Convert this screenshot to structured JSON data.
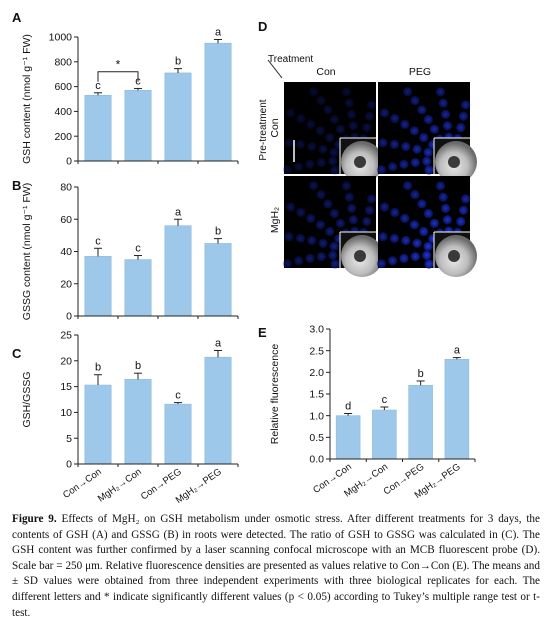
{
  "figure_label": "Figure 9.",
  "caption": "Effects of MgH₂ on GSH metabolism under osmotic stress. After different treatments for 3 days, the contents of GSH (A) and GSSG (B) in roots were detected. The ratio of GSH to GSSG was calculated in (C). The GSH content was further confirmed by a laser scanning confocal microscope with an MCB fluorescent probe (D). Scale bar = 250 μm. Relative fluorescence densities are presented as values relative to Con→Con (E). The means and ± SD values were obtained from three independent experiments with three biological replicates for each. The different letters and * indicate significantly different values (p < 0.05) according to Tukey’s multiple range test or t-test.",
  "colors": {
    "bar": "#9dc8ea",
    "bar_edge": "#8bbbe0",
    "axis": "#222222",
    "confocal_blue": "#1a2fd6"
  },
  "categories": [
    "Con→Con",
    "MgH₂→Con",
    "Con→PEG",
    "MgH₂→PEG"
  ],
  "chart_data": [
    {
      "panel": "A",
      "type": "bar",
      "categories": [
        "Con→Con",
        "MgH₂→Con",
        "Con→PEG",
        "MgH₂→PEG"
      ],
      "values": [
        530,
        570,
        710,
        950
      ],
      "errors": [
        20,
        15,
        35,
        30
      ],
      "letters": [
        "c",
        "c",
        "b",
        "a"
      ],
      "ylabel": "GSH content (nmol g⁻¹ FW)",
      "ylim": [
        0,
        1000
      ],
      "yticks": [
        0,
        200,
        400,
        600,
        800,
        1000
      ],
      "significance": {
        "pair": [
          0,
          1
        ],
        "mark": "*"
      }
    },
    {
      "panel": "B",
      "type": "bar",
      "categories": [
        "Con→Con",
        "MgH₂→Con",
        "Con→PEG",
        "MgH₂→PEG"
      ],
      "values": [
        37,
        35,
        56,
        45
      ],
      "errors": [
        5,
        2.5,
        4,
        3
      ],
      "letters": [
        "c",
        "c",
        "a",
        "b"
      ],
      "ylabel": "GSSG content (nmol g⁻¹ FW)",
      "ylim": [
        0,
        80
      ],
      "yticks": [
        0,
        20,
        40,
        60,
        80
      ]
    },
    {
      "panel": "C",
      "type": "bar",
      "categories": [
        "Con→Con",
        "MgH₂→Con",
        "Con→PEG",
        "MgH₂→PEG"
      ],
      "values": [
        15.3,
        16.4,
        11.6,
        20.7
      ],
      "errors": [
        2.0,
        1.2,
        0.3,
        1.3
      ],
      "letters": [
        "b",
        "b",
        "c",
        "a"
      ],
      "ylabel": "GSH/GSSG",
      "ylim": [
        0,
        25
      ],
      "yticks": [
        0,
        5,
        10,
        15,
        20,
        25
      ]
    },
    {
      "panel": "E",
      "type": "bar",
      "categories": [
        "Con→Con",
        "MgH₂→Con",
        "Con→PEG",
        "MgH₂→PEG"
      ],
      "values": [
        1.0,
        1.13,
        1.7,
        2.3
      ],
      "errors": [
        0.05,
        0.07,
        0.1,
        0.04
      ],
      "letters": [
        "d",
        "c",
        "b",
        "a"
      ],
      "ylabel": "Relative fluorescence",
      "ylim": [
        0,
        3.0
      ],
      "yticks": [
        0.0,
        0.5,
        1.0,
        1.5,
        2.0,
        2.5,
        3.0
      ]
    }
  ],
  "panel_d": {
    "panel": "D",
    "header_treatment": "Treatment",
    "header_pretreatment": "Pre-treatment",
    "col_labels": [
      "Con",
      "PEG"
    ],
    "row_labels": [
      "Con",
      "MgH₂"
    ]
  }
}
